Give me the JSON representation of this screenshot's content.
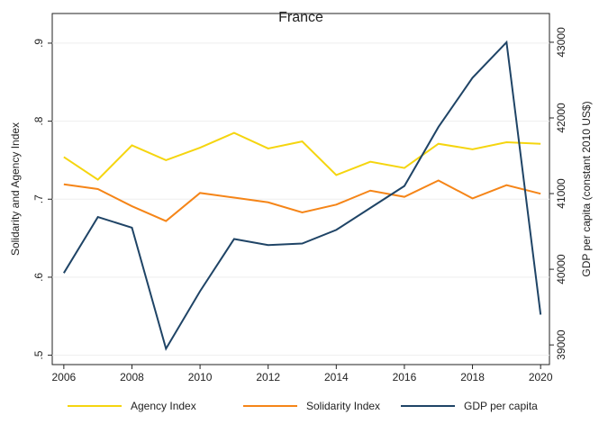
{
  "chart_data": {
    "type": "line",
    "title": "France",
    "y_label": "Solidarity and Agency Index",
    "y2_label": "GDP per capita (constant 2010 US$)",
    "x": [
      2006,
      2007,
      2008,
      2009,
      2010,
      2011,
      2012,
      2013,
      2014,
      2015,
      2016,
      2017,
      2018,
      2019,
      2020
    ],
    "xlim": [
      2005.66,
      2020.26
    ],
    "xticks": [
      2006,
      2008,
      2010,
      2012,
      2014,
      2016,
      2018,
      2020
    ],
    "ylim": [
      0.488,
      0.938
    ],
    "yticks": [
      {
        "value": 0.5,
        "label": ".5"
      },
      {
        "value": 0.6,
        "label": ".6"
      },
      {
        "value": 0.7,
        "label": ".7"
      },
      {
        "value": 0.8,
        "label": ".8"
      },
      {
        "value": 0.9,
        "label": ".9"
      }
    ],
    "y2lim": [
      38740,
      43380
    ],
    "y2ticks": [
      39000,
      40000,
      41000,
      42000,
      43000
    ],
    "grid": true,
    "legend": "bottom",
    "series": [
      {
        "name": "Agency Index",
        "color": "#f5d50f",
        "values": [
          0.754,
          0.725,
          0.769,
          0.75,
          0.766,
          0.785,
          0.765,
          0.774,
          0.731,
          0.748,
          0.74,
          0.771,
          0.764,
          0.773,
          0.771
        ]
      },
      {
        "name": "Solidarity Index",
        "color": "#f58518",
        "values": [
          0.719,
          0.713,
          0.691,
          0.672,
          0.708,
          0.702,
          0.696,
          0.683,
          0.693,
          0.711,
          0.703,
          0.724,
          0.701,
          0.718,
          0.707
        ]
      },
      {
        "name": "GDP per capita",
        "color": "#1f4466",
        "axis": "y2",
        "values": [
          39950,
          40690,
          40550,
          38950,
          39710,
          40400,
          40320,
          40340,
          40520,
          40810,
          41100,
          41880,
          42530,
          43000,
          39400
        ]
      }
    ]
  }
}
